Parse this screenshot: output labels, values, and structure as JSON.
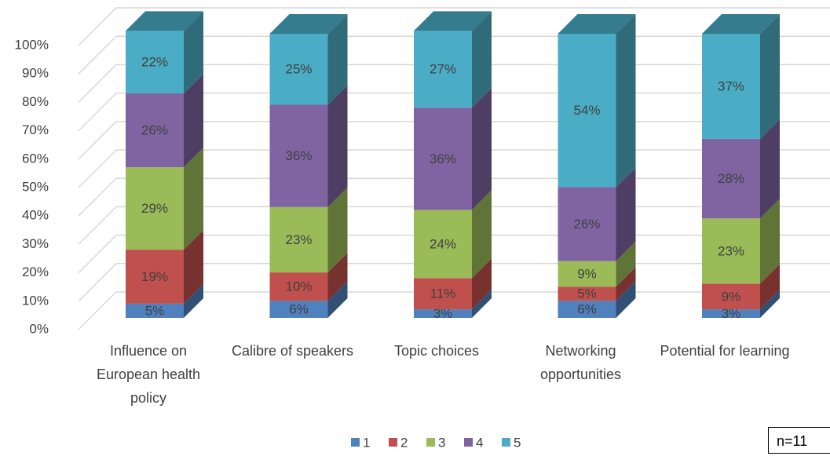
{
  "chart_data": {
    "type": "bar3d_stacked",
    "categories": [
      "Influence on European health policy",
      "Calibre of speakers",
      "Topic choices",
      "Networking opportunities",
      "Potential for learning"
    ],
    "series": [
      {
        "name": "1",
        "color": "#4f81bd",
        "values": [
          5,
          6,
          3,
          6,
          3
        ],
        "value_labels": [
          "5%",
          "6%",
          "3%",
          "6%",
          "3%"
        ]
      },
      {
        "name": "2",
        "color": "#c0504d",
        "values": [
          19,
          10,
          11,
          5,
          9
        ],
        "value_labels": [
          "19%",
          "10%",
          "11%",
          "5%",
          "9%"
        ]
      },
      {
        "name": "3",
        "color": "#9bbb59",
        "values": [
          29,
          23,
          24,
          9,
          23
        ],
        "value_labels": [
          "29%",
          "23%",
          "24%",
          "9%",
          "23%"
        ]
      },
      {
        "name": "4",
        "color": "#8064a2",
        "values": [
          26,
          36,
          36,
          26,
          28
        ],
        "value_labels": [
          "26%",
          "36%",
          "36%",
          "26%",
          "28%"
        ]
      },
      {
        "name": "5",
        "color": "#4bacc6",
        "values": [
          22,
          25,
          27,
          54,
          37
        ],
        "value_labels": [
          "22%",
          "25%",
          "27%",
          "54%",
          "37%"
        ]
      }
    ],
    "ylim": [
      0,
      100
    ],
    "yticks": [
      {
        "value": 0,
        "label": "0%"
      },
      {
        "value": 10,
        "label": "10%"
      },
      {
        "value": 20,
        "label": "20%"
      },
      {
        "value": 30,
        "label": "30%"
      },
      {
        "value": 40,
        "label": "40%"
      },
      {
        "value": 50,
        "label": "50%"
      },
      {
        "value": 60,
        "label": "60%"
      },
      {
        "value": 70,
        "label": "70%"
      },
      {
        "value": 80,
        "label": "80%"
      },
      {
        "value": 90,
        "label": "90%"
      },
      {
        "value": 100,
        "label": "100%"
      }
    ],
    "grid": true,
    "legend": "bottom",
    "annotation": "n=11"
  }
}
